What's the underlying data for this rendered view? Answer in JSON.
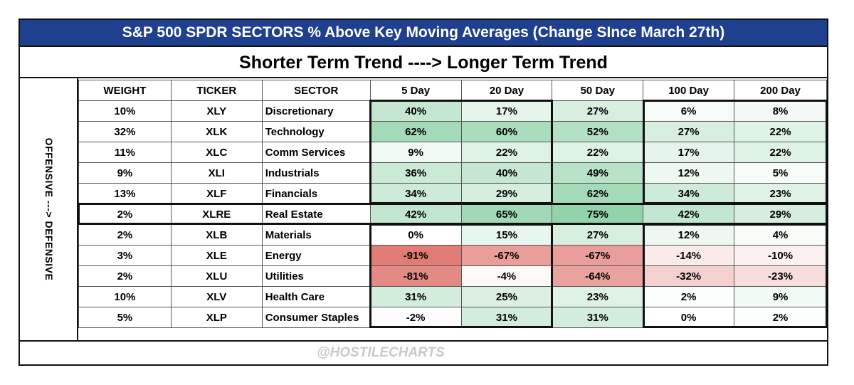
{
  "title": "S&P 500 SPDR SECTORS % Above Key Moving Averages (Change SInce March 27th)",
  "subtitle": "Shorter Term Trend ----> Longer Term Trend",
  "side_label": "OFFENSIVE ---> DEFENSIVE",
  "watermark": "@HOSTILECHARTS",
  "colors": {
    "title_bg": "#1f3f8f",
    "positive": "#7fc99a",
    "negative": "#e07b74"
  },
  "chart_data": {
    "type": "table",
    "columns": [
      "WEIGHT",
      "TICKER",
      "SECTOR",
      "5 Day",
      "20 Day",
      "50 Day",
      "100 Day",
      "200 Day"
    ],
    "rows": [
      {
        "weight": "10%",
        "ticker": "XLY",
        "sector": "Discretionary",
        "d5": "40%",
        "d20": "17%",
        "d50": "27%",
        "d100": "6%",
        "d200": "8%"
      },
      {
        "weight": "32%",
        "ticker": "XLK",
        "sector": "Technology",
        "d5": "62%",
        "d20": "60%",
        "d50": "52%",
        "d100": "27%",
        "d200": "22%"
      },
      {
        "weight": "11%",
        "ticker": "XLC",
        "sector": "Comm Services",
        "d5": "9%",
        "d20": "22%",
        "d50": "22%",
        "d100": "17%",
        "d200": "22%"
      },
      {
        "weight": "9%",
        "ticker": "XLI",
        "sector": "Industrials",
        "d5": "36%",
        "d20": "40%",
        "d50": "49%",
        "d100": "12%",
        "d200": "5%"
      },
      {
        "weight": "13%",
        "ticker": "XLF",
        "sector": "Financials",
        "d5": "34%",
        "d20": "29%",
        "d50": "62%",
        "d100": "34%",
        "d200": "23%"
      },
      {
        "weight": "2%",
        "ticker": "XLRE",
        "sector": "Real Estate",
        "d5": "42%",
        "d20": "65%",
        "d50": "75%",
        "d100": "42%",
        "d200": "29%"
      },
      {
        "weight": "2%",
        "ticker": "XLB",
        "sector": "Materials",
        "d5": "0%",
        "d20": "15%",
        "d50": "27%",
        "d100": "12%",
        "d200": "4%"
      },
      {
        "weight": "3%",
        "ticker": "XLE",
        "sector": "Energy",
        "d5": "-91%",
        "d20": "-67%",
        "d50": "-67%",
        "d100": "-14%",
        "d200": "-10%"
      },
      {
        "weight": "2%",
        "ticker": "XLU",
        "sector": "Utilities",
        "d5": "-81%",
        "d20": "-4%",
        "d50": "-64%",
        "d100": "-32%",
        "d200": "-23%"
      },
      {
        "weight": "10%",
        "ticker": "XLV",
        "sector": "Health Care",
        "d5": "31%",
        "d20": "25%",
        "d50": "23%",
        "d100": "2%",
        "d200": "9%"
      },
      {
        "weight": "5%",
        "ticker": "XLP",
        "sector": "Consumer Staples",
        "d5": "-2%",
        "d20": "31%",
        "d50": "31%",
        "d100": "0%",
        "d200": "2%"
      }
    ]
  }
}
